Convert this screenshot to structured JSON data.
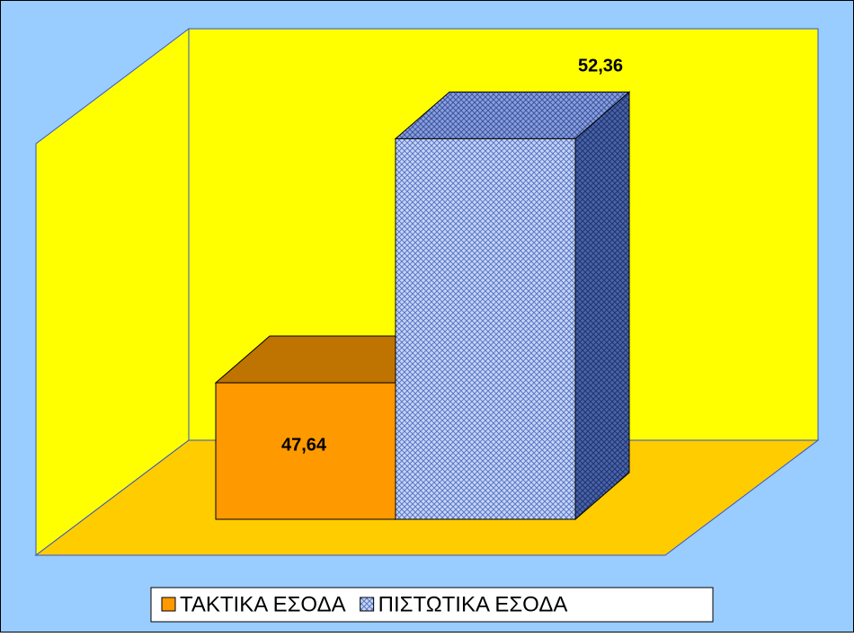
{
  "chart_data": {
    "type": "bar",
    "series": [
      {
        "name": "ΤΑΚΤΙΚΑ ΕΣΟΔΑ",
        "color": "#ff9900",
        "values": [
          47.64
        ],
        "value_labels": [
          "47,64"
        ]
      },
      {
        "name": "ΠΙΣΤΩΤΙΚΑ ΕΣΟΔΑ",
        "color": "#99b3e6",
        "values": [
          52.36
        ],
        "value_labels": [
          "52,36"
        ],
        "pattern": "crosshatch"
      }
    ],
    "ylim": [
      45,
      54
    ]
  }
}
